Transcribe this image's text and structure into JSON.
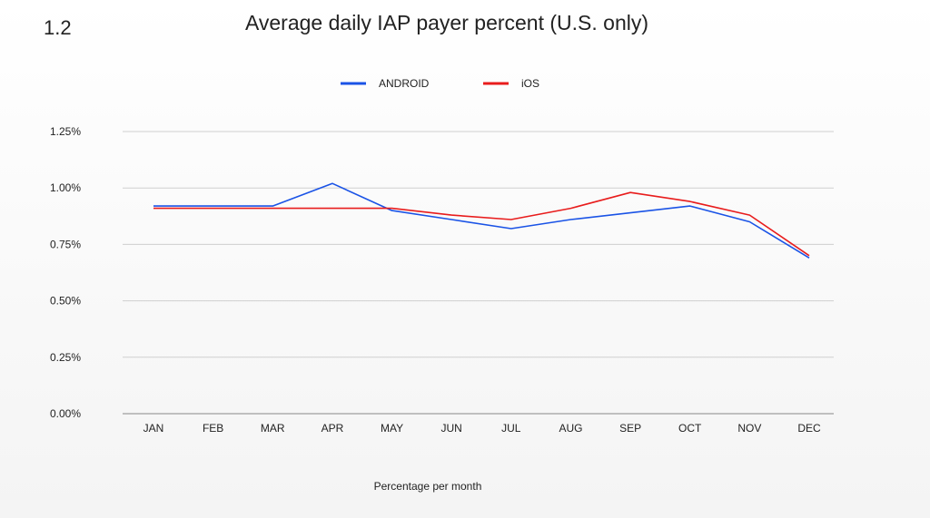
{
  "slide": {
    "number": "1.2"
  },
  "chart_data": {
    "type": "line",
    "title": "Average daily IAP payer percent (U.S. only)",
    "xlabel": "Percentage per month",
    "ylabel": "",
    "categories": [
      "JAN",
      "FEB",
      "MAR",
      "APR",
      "MAY",
      "JUN",
      "JUL",
      "AUG",
      "SEP",
      "OCT",
      "NOV",
      "DEC"
    ],
    "ylim": [
      0,
      1.25
    ],
    "yticks": [
      {
        "value": 0,
        "label": "0.00%"
      },
      {
        "value": 0.25,
        "label": "0.25%"
      },
      {
        "value": 0.5,
        "label": "0.50%"
      },
      {
        "value": 0.75,
        "label": "0.75%"
      },
      {
        "value": 1.0,
        "label": "1.00%"
      },
      {
        "value": 1.25,
        "label": "1.25%"
      }
    ],
    "grid": true,
    "legend_position": "top-center",
    "series": [
      {
        "name": "ANDROID",
        "color": "#1a53e6",
        "values": [
          0.92,
          0.92,
          0.92,
          1.02,
          0.9,
          0.86,
          0.82,
          0.86,
          0.89,
          0.92,
          0.85,
          0.69
        ]
      },
      {
        "name": "iOS",
        "color": "#e81c1c",
        "values": [
          0.91,
          0.91,
          0.91,
          0.91,
          0.91,
          0.88,
          0.86,
          0.91,
          0.98,
          0.94,
          0.88,
          0.7
        ]
      }
    ]
  }
}
